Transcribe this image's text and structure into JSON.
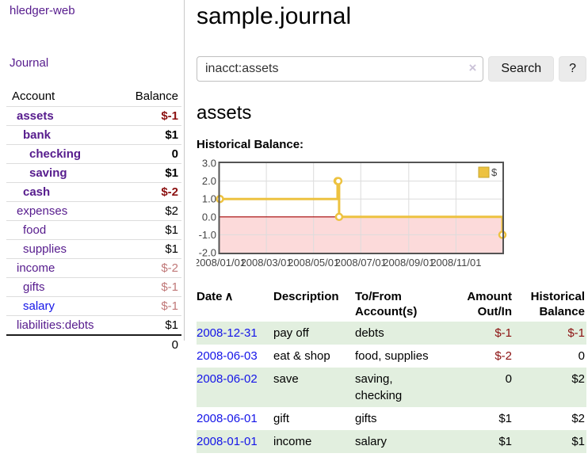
{
  "app": {
    "title": "hledger-web"
  },
  "sidebar": {
    "journal_label": "Journal",
    "accounts_table": {
      "headers": {
        "account": "Account",
        "balance": "Balance"
      },
      "rows": [
        {
          "name": "assets",
          "depth": 0,
          "balance": "$-1",
          "strong": true,
          "name_style": "purple",
          "bal_style": "neg-strong"
        },
        {
          "name": "bank",
          "depth": 1,
          "balance": "$1",
          "strong": true,
          "name_style": "purple",
          "bal_style": "pos-strong"
        },
        {
          "name": "checking",
          "depth": 2,
          "balance": "0",
          "strong": true,
          "name_style": "purple",
          "bal_style": "pos-strong"
        },
        {
          "name": "saving",
          "depth": 2,
          "balance": "$1",
          "strong": true,
          "name_style": "purple",
          "bal_style": "pos-strong"
        },
        {
          "name": "cash",
          "depth": 1,
          "balance": "$-2",
          "strong": true,
          "name_style": "purple",
          "bal_style": "neg-strong"
        },
        {
          "name": "expenses",
          "depth": 0,
          "balance": "$2",
          "strong": false,
          "name_style": "purple",
          "bal_style": "pos"
        },
        {
          "name": "food",
          "depth": 1,
          "balance": "$1",
          "strong": false,
          "name_style": "purple",
          "bal_style": "pos"
        },
        {
          "name": "supplies",
          "depth": 1,
          "balance": "$1",
          "strong": false,
          "name_style": "purple",
          "bal_style": "pos"
        },
        {
          "name": "income",
          "depth": 0,
          "balance": "$-2",
          "strong": false,
          "name_style": "purple",
          "bal_style": "neg-soft"
        },
        {
          "name": "gifts",
          "depth": 1,
          "balance": "$-1",
          "strong": false,
          "name_style": "purple",
          "bal_style": "neg-soft"
        },
        {
          "name": "salary",
          "depth": 1,
          "balance": "$-1",
          "strong": false,
          "name_style": "blue",
          "bal_style": "neg-soft"
        },
        {
          "name": "liabilities:debts",
          "depth": 0,
          "balance": "$1",
          "strong": false,
          "name_style": "purple",
          "bal_style": "pos"
        }
      ],
      "total": "0"
    }
  },
  "main": {
    "title": "sample.journal",
    "search": {
      "value": "inacct:assets",
      "clear_icon": "×",
      "search_button": "Search",
      "help_button": "?"
    },
    "account_heading": "assets",
    "chart_label": "Historical Balance:",
    "chart_data": {
      "type": "line",
      "step": true,
      "title": "Historical Balance:",
      "series": [
        {
          "name": "$",
          "color": "#EDC240",
          "x": [
            "2008-01-01",
            "2008-06-01",
            "2008-06-02",
            "2008-06-03",
            "2008-12-31"
          ],
          "values": [
            1,
            2,
            2,
            0,
            -1
          ]
        }
      ],
      "xlim": [
        "2008-01-01",
        "2008-12-31"
      ],
      "ylim": [
        -2,
        3
      ],
      "x_ticks": [
        "2008/01/01",
        "2008/03/01",
        "2008/05/01",
        "2008/07/01",
        "2008/09/01",
        "2008/11/01"
      ],
      "y_ticks": [
        3.0,
        2.0,
        1.0,
        0.0,
        -1.0,
        -2.0
      ],
      "grid": true,
      "legend_position": "top-right",
      "legend_label": "$",
      "colors": {
        "line": "#EDC240",
        "marker_fill": "#ffffff",
        "negative_region": "#fcdada",
        "zero_line": "#a40000",
        "border": "#545454",
        "gridline": "#dcdcdc"
      }
    },
    "register": {
      "headers": {
        "date": "Date",
        "sort_icon": "∧",
        "description": "Description",
        "accounts": "To/From Account(s)",
        "amount": "Amount Out/In",
        "balance": "Historical Balance"
      },
      "rows": [
        {
          "date": "2008-12-31",
          "description": "pay off",
          "accounts": "debts",
          "amount": "$-1",
          "amount_neg": true,
          "balance": "$-1",
          "balance_neg": true
        },
        {
          "date": "2008-06-03",
          "description": "eat & shop",
          "accounts": "food, supplies",
          "amount": "$-2",
          "amount_neg": true,
          "balance": "0",
          "balance_neg": false
        },
        {
          "date": "2008-06-02",
          "description": "save",
          "accounts": "saving, checking",
          "amount": "0",
          "amount_neg": false,
          "balance": "$2",
          "balance_neg": false
        },
        {
          "date": "2008-06-01",
          "description": "gift",
          "accounts": "gifts",
          "amount": "$1",
          "amount_neg": false,
          "balance": "$2",
          "balance_neg": false
        },
        {
          "date": "2008-01-01",
          "description": "income",
          "accounts": "salary",
          "amount": "$1",
          "amount_neg": false,
          "balance": "$1",
          "balance_neg": false
        }
      ]
    }
  },
  "colors": {
    "link_purple": "#561b8d",
    "link_blue": "#1414e8",
    "negative_strong": "#8b1010",
    "negative_soft": "#c07878",
    "row_stripe_green": "#e2efdf"
  }
}
